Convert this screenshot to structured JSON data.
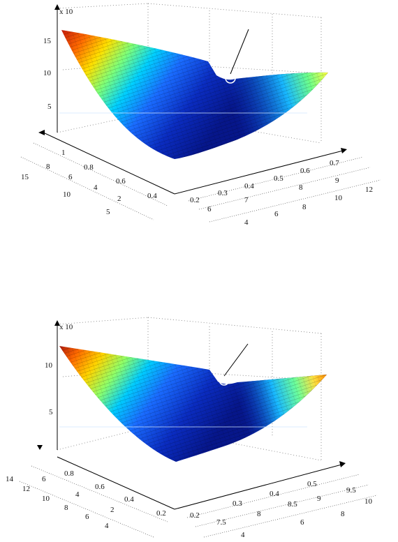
{
  "chart_data": [
    {
      "type": "surface",
      "z_exponent_label": "x 10",
      "z_ticks": [
        "15",
        "10",
        "5"
      ],
      "left_axis_a_ticks": [
        "1",
        "0.8",
        "0.6",
        "0.4"
      ],
      "left_axis_b_ticks": [
        "8",
        "6",
        "4",
        "2"
      ],
      "left_axis_c_ticks": [
        "15",
        "10",
        "5"
      ],
      "right_axis_a_ticks": [
        "0.2",
        "0.3",
        "0.4",
        "0.5",
        "0.6",
        "0.7"
      ],
      "right_axis_b_ticks": [
        "6",
        "7",
        "8",
        "9"
      ],
      "right_axis_c_ticks": [
        "4",
        "6",
        "8",
        "10",
        "12"
      ],
      "marker": "circled minimum point with pointer line",
      "colormap": "jet"
    },
    {
      "type": "surface",
      "z_exponent_label": "x 10",
      "z_ticks": [
        "10",
        "5"
      ],
      "left_axis_a_ticks": [
        "0.8",
        "0.6",
        "0.4",
        "0.2"
      ],
      "left_axis_b_ticks": [
        "6",
        "4",
        "2"
      ],
      "left_axis_c_ticks": [
        "14",
        "12",
        "10",
        "8",
        "6",
        "4"
      ],
      "right_axis_a_ticks": [
        "0.2",
        "0.3",
        "0.4",
        "0.5"
      ],
      "right_axis_b_ticks": [
        "7.5",
        "8",
        "8.5",
        "9",
        "9.5"
      ],
      "right_axis_c_ticks": [
        "4",
        "6",
        "8",
        "10"
      ],
      "marker": "circled minimum point with pointer line",
      "colormap": "jet"
    }
  ]
}
